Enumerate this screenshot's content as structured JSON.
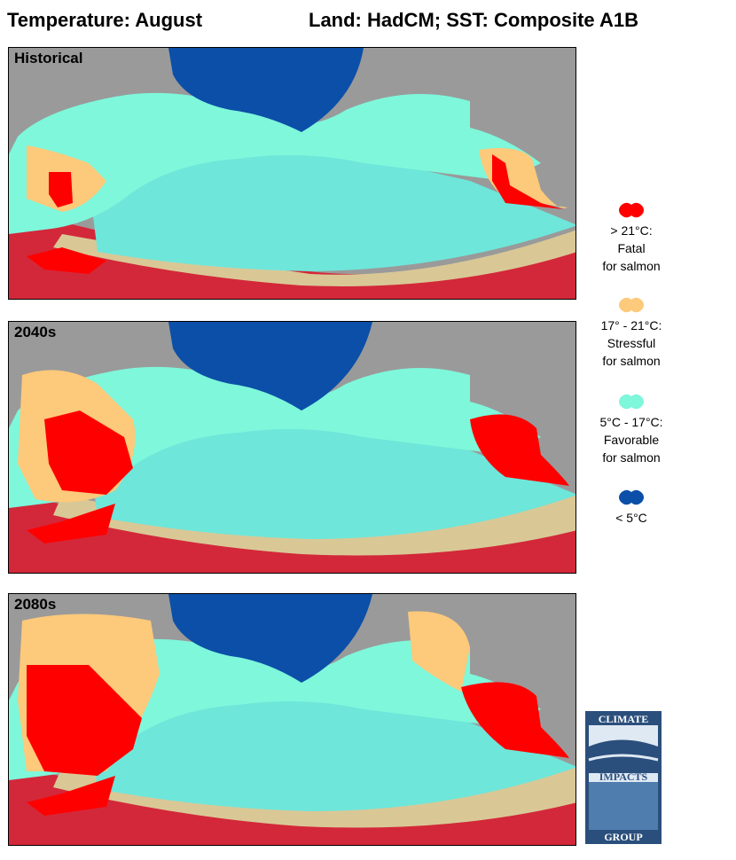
{
  "header": {
    "title_left": "Temperature: August",
    "title_right": "Land: HadCM; SST: Composite A1B"
  },
  "panels": [
    {
      "label": "Historical"
    },
    {
      "label": "2040s"
    },
    {
      "label": "2080s"
    }
  ],
  "legend": [
    {
      "line1": "> 21°C:",
      "line2": "Fatal",
      "line3": "for salmon",
      "color": "#ff0000"
    },
    {
      "line1": "17° - 21°C:",
      "line2": "Stressful",
      "line3": "for salmon",
      "color": "#fdc97a"
    },
    {
      "line1": "5°C - 17°C:",
      "line2": "Favorable",
      "line3": "for salmon",
      "color": "#7ef7db"
    },
    {
      "line1": "< 5°C",
      "line2": "",
      "line3": "",
      "color": "#0b4fa8"
    }
  ],
  "logo": {
    "top": "CLIMATE",
    "middle": "IMPACTS",
    "bottom": "GROUP"
  },
  "colors": {
    "background_land": "#9a9a9a",
    "sea_ice": "#b8c0cc",
    "favorable_sea": "#6ee6da",
    "stressful_sea": "#d9c896",
    "fatal_sea": "#d3283a",
    "fatal_land": "#ff0000",
    "stressful_land": "#fdc97a",
    "favorable_land": "#7ef7db",
    "cold": "#0b4fa8"
  }
}
